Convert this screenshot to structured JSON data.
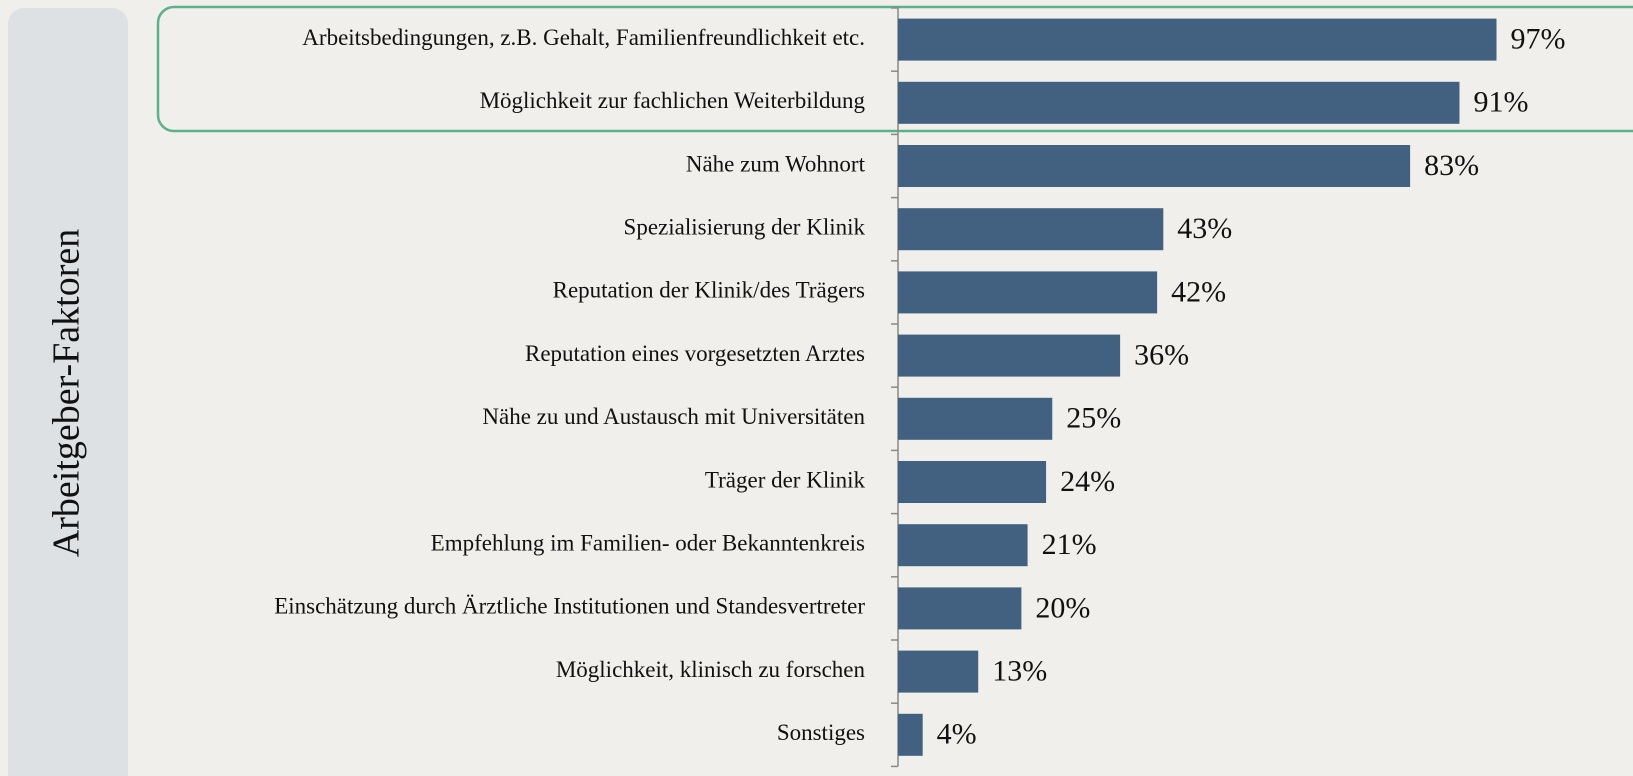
{
  "chart_data": {
    "type": "bar",
    "orientation": "horizontal",
    "y_label": "Arbeitgeber-Faktoren",
    "categories": [
      "Arbeitsbedingungen, z.B. Gehalt, Familienfreundlichkeit etc.",
      "Möglichkeit zur fachlichen Weiterbildung",
      "Nähe zum Wohnort",
      "Spezialisierung der Klinik",
      "Reputation der Klinik/des Trägers",
      "Reputation eines vorgesetzten Arztes",
      "Nähe zu und Austausch mit Universitäten",
      "Träger der Klinik",
      "Empfehlung im Familien- oder Bekanntenkreis",
      "Einschätzung durch Ärztliche Institutionen und Standesvertreter",
      "Möglichkeit, klinisch zu forschen",
      "Sonstiges"
    ],
    "values": [
      97,
      91,
      83,
      43,
      42,
      36,
      25,
      24,
      21,
      20,
      13,
      4
    ],
    "value_labels": [
      "97%",
      "91%",
      "83%",
      "43%",
      "42%",
      "36%",
      "25%",
      "24%",
      "21%",
      "20%",
      "13%",
      "4%"
    ],
    "color": "#42607f",
    "xlim": [
      0,
      100
    ]
  }
}
